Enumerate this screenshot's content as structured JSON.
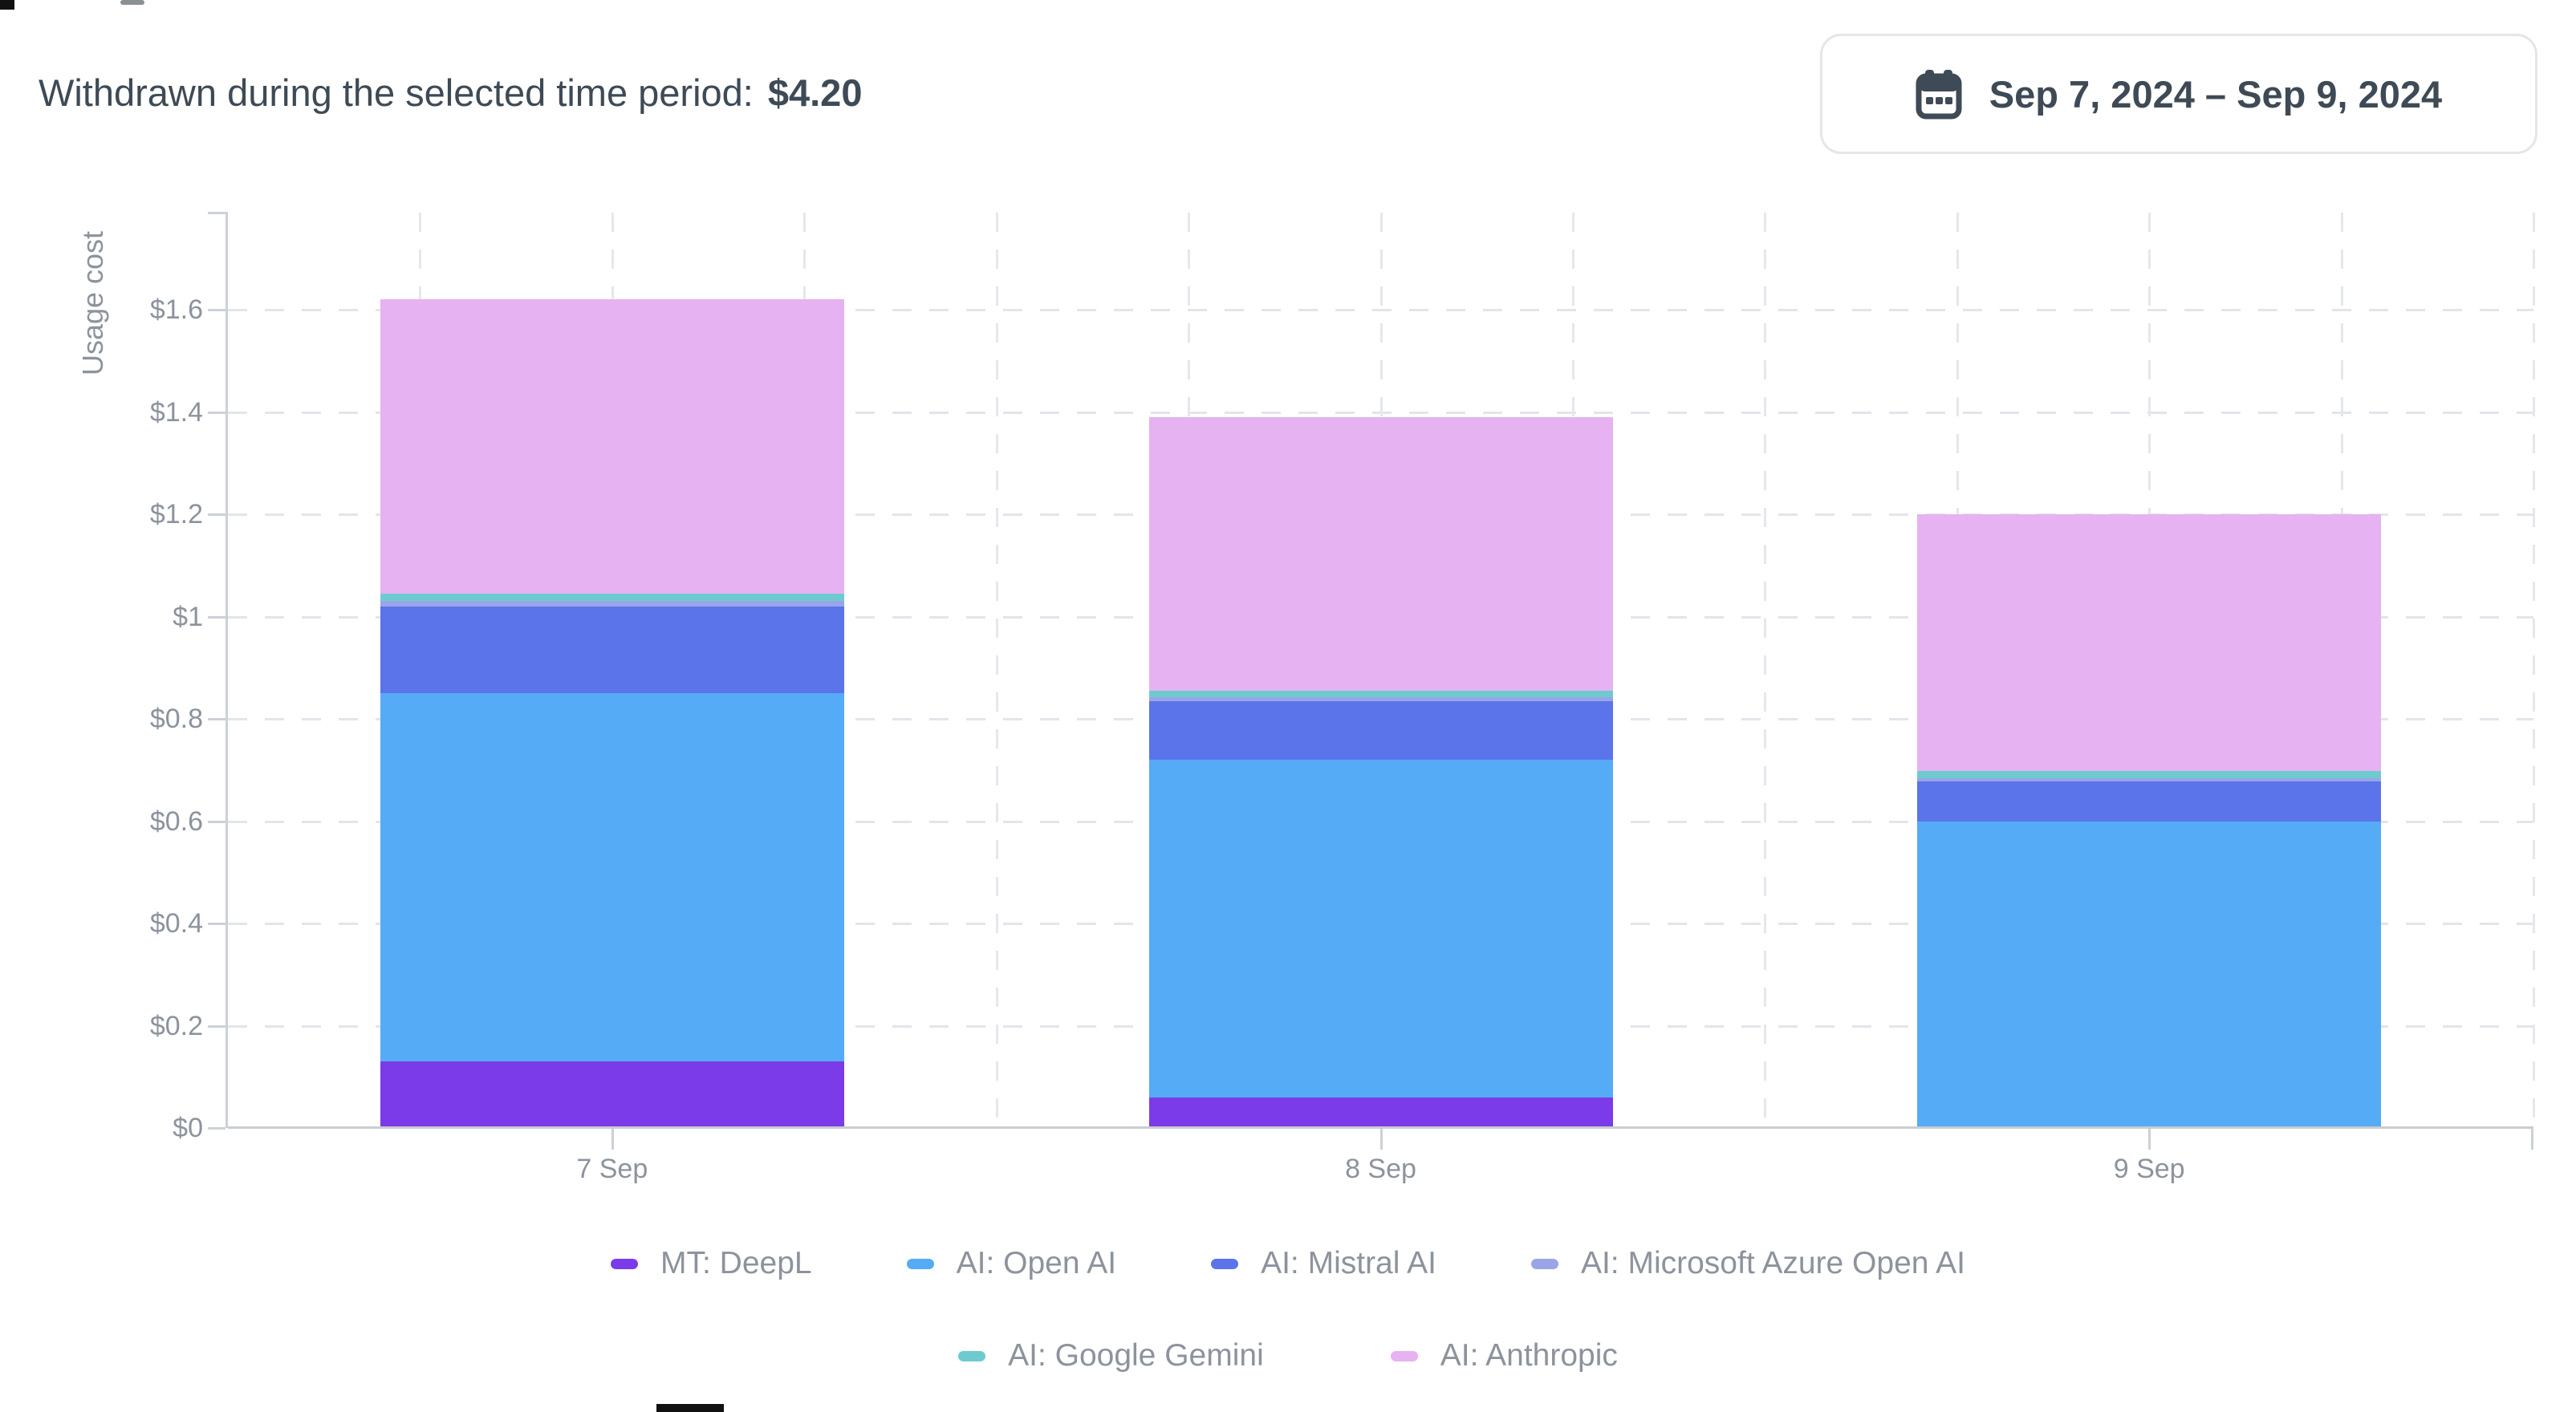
{
  "header": {
    "summary_label": "Withdrawn during the selected time period:",
    "summary_value": "$4.20"
  },
  "date_range": {
    "icon": "calendar-icon",
    "label": "Sep 7, 2024 – Sep 9, 2024"
  },
  "chart_data": {
    "type": "bar",
    "stacked": true,
    "title": "",
    "xlabel": "",
    "ylabel": "Usage cost",
    "categories": [
      "7 Sep",
      "8 Sep",
      "9 Sep"
    ],
    "y_ticks": [
      "$0",
      "$0.2",
      "$0.4",
      "$0.6",
      "$0.8",
      "$1",
      "$1.2",
      "$1.4",
      "$1.6"
    ],
    "y_tick_values": [
      0,
      0.2,
      0.4,
      0.6,
      0.8,
      1.0,
      1.2,
      1.4,
      1.6
    ],
    "ylim": [
      0,
      1.79
    ],
    "grid": true,
    "legend_position": "bottom",
    "series": [
      {
        "name": "MT: DeepL",
        "color": "#7c3be8",
        "values": [
          0.13,
          0.06,
          0
        ]
      },
      {
        "name": "AI: Open AI",
        "color": "#55abf5",
        "values": [
          0.72,
          0.66,
          0.6
        ]
      },
      {
        "name": "AI: Mistral AI",
        "color": "#5b74ea",
        "values": [
          0.17,
          0.115,
          0.078
        ]
      },
      {
        "name": "AI: Microsoft Azure Open AI",
        "color": "#9aa5e8",
        "values": [
          0.01,
          0.007,
          0.006
        ]
      },
      {
        "name": "AI: Google Gemini",
        "color": "#6dcbd0",
        "values": [
          0.015,
          0.013,
          0.014
        ]
      },
      {
        "name": "AI: Anthropic",
        "color": "#e6b2f2",
        "values": [
          0.575,
          0.535,
          0.502
        ]
      }
    ]
  },
  "colors": {
    "text_primary": "#3e4a55",
    "text_muted": "#8d939d",
    "grid": "#e2e5ea",
    "axis": "#ccd1d7",
    "button_border": "#e3e6ea"
  }
}
